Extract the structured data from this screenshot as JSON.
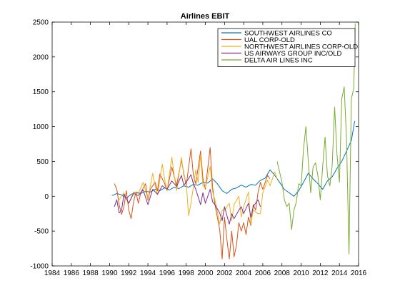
{
  "chart_data": {
    "type": "line",
    "title": "Airlines EBIT",
    "xlabel": "",
    "ylabel": "",
    "xlim": [
      1984,
      2016
    ],
    "ylim": [
      -1000,
      2500
    ],
    "xticks": [
      1984,
      1986,
      1988,
      1990,
      1992,
      1994,
      1996,
      1998,
      2000,
      2002,
      2004,
      2006,
      2008,
      2010,
      2012,
      2014,
      2016
    ],
    "yticks": [
      -1000,
      -500,
      0,
      500,
      1000,
      1500,
      2000,
      2500
    ],
    "grid": false,
    "legend_position": "top-right",
    "series": [
      {
        "name": "SOUTHWEST AIRLINES CO",
        "color": "#0072bd",
        "points": [
          [
            1990.25,
            10
          ],
          [
            1990.75,
            40
          ],
          [
            1991.25,
            20
          ],
          [
            1991.75,
            -30
          ],
          [
            1992.25,
            30
          ],
          [
            1992.75,
            60
          ],
          [
            1993.25,
            40
          ],
          [
            1993.75,
            70
          ],
          [
            1994.25,
            60
          ],
          [
            1994.75,
            100
          ],
          [
            1995.25,
            80
          ],
          [
            1995.75,
            120
          ],
          [
            1996.25,
            90
          ],
          [
            1996.75,
            130
          ],
          [
            1997.25,
            110
          ],
          [
            1997.75,
            150
          ],
          [
            1998.25,
            130
          ],
          [
            1998.75,
            170
          ],
          [
            1999.25,
            160
          ],
          [
            1999.75,
            200
          ],
          [
            2000.25,
            190
          ],
          [
            2000.75,
            250
          ],
          [
            2001.25,
            180
          ],
          [
            2001.75,
            80
          ],
          [
            2002.25,
            40
          ],
          [
            2002.75,
            100
          ],
          [
            2003.25,
            120
          ],
          [
            2003.75,
            160
          ],
          [
            2004.25,
            130
          ],
          [
            2004.75,
            170
          ],
          [
            2005.25,
            160
          ],
          [
            2005.75,
            230
          ],
          [
            2006.25,
            260
          ],
          [
            2006.75,
            380
          ],
          [
            2007.25,
            300
          ],
          [
            2007.75,
            200
          ],
          [
            2008.25,
            100
          ],
          [
            2008.75,
            50
          ],
          [
            2009.25,
            0
          ],
          [
            2009.75,
            80
          ],
          [
            2010.25,
            200
          ],
          [
            2010.75,
            330
          ],
          [
            2011.25,
            250
          ],
          [
            2011.75,
            180
          ],
          [
            2012.25,
            100
          ],
          [
            2012.75,
            220
          ],
          [
            2013.25,
            280
          ],
          [
            2013.75,
            400
          ],
          [
            2014.25,
            500
          ],
          [
            2014.75,
            650
          ],
          [
            2015.25,
            800
          ],
          [
            2015.6,
            1080
          ]
        ]
      },
      {
        "name": "UAL CORP-OLD",
        "color": "#d95319",
        "points": [
          [
            1990.5,
            180
          ],
          [
            1990.75,
            100
          ],
          [
            1991.0,
            -120
          ],
          [
            1991.25,
            -260
          ],
          [
            1991.5,
            -150
          ],
          [
            1991.75,
            80
          ],
          [
            1992.0,
            -200
          ],
          [
            1992.25,
            -320
          ],
          [
            1992.5,
            -80
          ],
          [
            1992.75,
            60
          ],
          [
            1993.0,
            -100
          ],
          [
            1993.25,
            50
          ],
          [
            1993.75,
            180
          ],
          [
            1994.0,
            -60
          ],
          [
            1994.25,
            100
          ],
          [
            1994.75,
            200
          ],
          [
            1995.0,
            80
          ],
          [
            1995.25,
            320
          ],
          [
            1995.75,
            180
          ],
          [
            1996.0,
            80
          ],
          [
            1996.5,
            420
          ],
          [
            1996.75,
            280
          ],
          [
            1997.0,
            160
          ],
          [
            1997.5,
            520
          ],
          [
            1997.75,
            330
          ],
          [
            1998.0,
            150
          ],
          [
            1998.5,
            680
          ],
          [
            1998.75,
            300
          ],
          [
            1999.0,
            180
          ],
          [
            1999.5,
            650
          ],
          [
            1999.75,
            260
          ],
          [
            2000.0,
            100
          ],
          [
            2000.5,
            700
          ],
          [
            2000.75,
            130
          ],
          [
            2001.0,
            -120
          ],
          [
            2001.5,
            -480
          ],
          [
            2001.75,
            -900
          ],
          [
            2002.0,
            -300
          ],
          [
            2002.25,
            -620
          ],
          [
            2002.5,
            -900
          ],
          [
            2002.75,
            -500
          ],
          [
            2003.0,
            -870
          ],
          [
            2003.25,
            -700
          ],
          [
            2003.5,
            -380
          ],
          [
            2003.75,
            -500
          ],
          [
            2004.0,
            -380
          ],
          [
            2004.25,
            -550
          ],
          [
            2004.5,
            -300
          ],
          [
            2004.75,
            -420
          ],
          [
            2005.0,
            -120
          ],
          [
            2005.25,
            -200
          ],
          [
            2005.5,
            50
          ],
          [
            2005.75,
            200
          ],
          [
            2006.0,
            100
          ],
          [
            2006.5,
            300
          ],
          [
            2006.75,
            250
          ]
        ]
      },
      {
        "name": "NORTHWEST AIRLINES CORP-OLD",
        "color": "#edb120",
        "points": [
          [
            1991.0,
            -50
          ],
          [
            1991.5,
            50
          ],
          [
            1992.0,
            -100
          ],
          [
            1992.5,
            60
          ],
          [
            1993.0,
            40
          ],
          [
            1993.5,
            200
          ],
          [
            1993.75,
            80
          ],
          [
            1994.0,
            -40
          ],
          [
            1994.5,
            330
          ],
          [
            1994.75,
            160
          ],
          [
            1995.0,
            20
          ],
          [
            1995.5,
            460
          ],
          [
            1995.75,
            240
          ],
          [
            1996.0,
            80
          ],
          [
            1996.5,
            560
          ],
          [
            1996.75,
            300
          ],
          [
            1997.0,
            80
          ],
          [
            1997.5,
            560
          ],
          [
            1997.75,
            300
          ],
          [
            1998.0,
            200
          ],
          [
            1998.25,
            -280
          ],
          [
            1998.5,
            -100
          ],
          [
            1999.0,
            380
          ],
          [
            1999.25,
            200
          ],
          [
            1999.5,
            600
          ],
          [
            1999.75,
            150
          ],
          [
            2000.0,
            120
          ],
          [
            2000.5,
            430
          ],
          [
            2000.75,
            60
          ],
          [
            2001.0,
            -50
          ],
          [
            2001.5,
            -400
          ],
          [
            2001.75,
            -200
          ],
          [
            2002.0,
            -200
          ],
          [
            2002.5,
            -100
          ],
          [
            2002.75,
            -350
          ],
          [
            2003.0,
            -120
          ],
          [
            2003.5,
            0
          ],
          [
            2003.75,
            -300
          ],
          [
            2004.0,
            -150
          ],
          [
            2004.5,
            60
          ],
          [
            2004.75,
            -400
          ],
          [
            2005.0,
            -200
          ],
          [
            2005.5,
            -250
          ],
          [
            2005.75,
            -250
          ],
          [
            2006.0,
            50
          ],
          [
            2006.5,
            230
          ],
          [
            2006.75,
            150
          ],
          [
            2007.25,
            350
          ],
          [
            2007.5,
            250
          ]
        ]
      },
      {
        "name": "US AIRWAYS GROUP INC/OLD",
        "color": "#7e2f8e",
        "points": [
          [
            1990.5,
            -150
          ],
          [
            1990.75,
            -50
          ],
          [
            1991.0,
            -240
          ],
          [
            1991.25,
            -200
          ],
          [
            1991.5,
            30
          ],
          [
            1992.0,
            -100
          ],
          [
            1992.5,
            40
          ],
          [
            1993.0,
            10
          ],
          [
            1993.5,
            90
          ],
          [
            1994.0,
            -120
          ],
          [
            1994.5,
            100
          ],
          [
            1995.0,
            30
          ],
          [
            1995.5,
            150
          ],
          [
            1996.0,
            100
          ],
          [
            1996.5,
            220
          ],
          [
            1997.0,
            140
          ],
          [
            1997.5,
            300
          ],
          [
            1997.75,
            160
          ],
          [
            1998.0,
            200
          ],
          [
            1998.5,
            310
          ],
          [
            1998.75,
            180
          ],
          [
            1999.0,
            100
          ],
          [
            1999.5,
            -120
          ],
          [
            1999.75,
            50
          ],
          [
            2000.0,
            -100
          ],
          [
            2000.5,
            100
          ],
          [
            2000.75,
            -80
          ],
          [
            2001.0,
            -120
          ],
          [
            2001.5,
            -240
          ],
          [
            2001.75,
            -350
          ],
          [
            2002.0,
            -150
          ],
          [
            2002.5,
            -400
          ],
          [
            2002.75,
            -250
          ],
          [
            2003.0,
            -320
          ],
          [
            2003.5,
            -200
          ],
          [
            2003.75,
            -150
          ],
          [
            2004.0,
            -250
          ],
          [
            2004.5,
            -100
          ],
          [
            2004.75,
            -300
          ],
          [
            2005.0,
            -150
          ],
          [
            2005.5,
            -50
          ],
          [
            2005.75,
            -150
          ]
        ]
      },
      {
        "name": "DELTA AIR LINES INC",
        "color": "#77ac30",
        "points": [
          [
            2007.5,
            500
          ],
          [
            2007.75,
            350
          ],
          [
            2008.0,
            200
          ],
          [
            2008.25,
            -50
          ],
          [
            2008.5,
            -150
          ],
          [
            2008.75,
            -100
          ],
          [
            2009.0,
            -480
          ],
          [
            2009.25,
            -200
          ],
          [
            2009.5,
            -80
          ],
          [
            2009.75,
            180
          ],
          [
            2010.0,
            150
          ],
          [
            2010.25,
            680
          ],
          [
            2010.5,
            1000
          ],
          [
            2010.75,
            500
          ],
          [
            2011.0,
            50
          ],
          [
            2011.25,
            420
          ],
          [
            2011.5,
            480
          ],
          [
            2011.75,
            300
          ],
          [
            2012.0,
            -50
          ],
          [
            2012.25,
            420
          ],
          [
            2012.5,
            850
          ],
          [
            2012.75,
            300
          ],
          [
            2013.0,
            150
          ],
          [
            2013.25,
            450
          ],
          [
            2013.5,
            1280
          ],
          [
            2013.75,
            600
          ],
          [
            2014.0,
            200
          ],
          [
            2014.25,
            1400
          ],
          [
            2014.5,
            1570
          ],
          [
            2014.75,
            800
          ],
          [
            2015.0,
            -830
          ],
          [
            2015.25,
            1400
          ],
          [
            2015.5,
            1550
          ],
          [
            2015.65,
            2480
          ]
        ]
      }
    ]
  }
}
